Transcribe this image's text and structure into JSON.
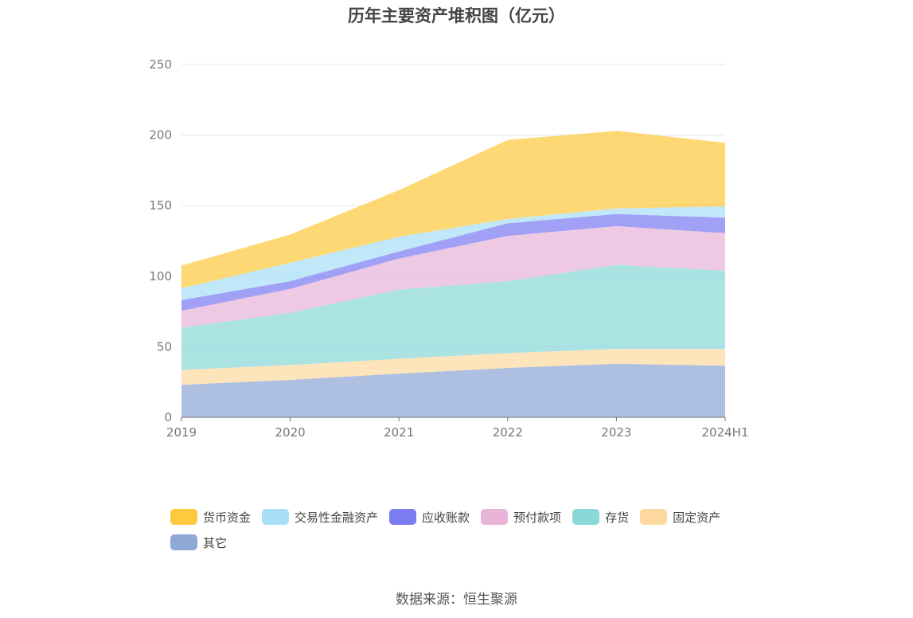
{
  "chart_data": {
    "type": "area",
    "stacked": true,
    "title": "历年主要资产堆积图（亿元）",
    "categories": [
      "2019",
      "2020",
      "2021",
      "2022",
      "2023",
      "2024H1"
    ],
    "ylim": [
      0,
      250
    ],
    "yticks": [
      0,
      50,
      100,
      150,
      200,
      250
    ],
    "grid": true,
    "legend_position": "bottom",
    "series": [
      {
        "name": "其它",
        "color": "#8fa8d6",
        "values": [
          23,
          26.5,
          31,
          35,
          38,
          36.5
        ]
      },
      {
        "name": "固定资产",
        "color": "#fdd9a0",
        "values": [
          10.5,
          10.5,
          10.5,
          10.5,
          10.5,
          12
        ]
      },
      {
        "name": "存货",
        "color": "#8ad8d8",
        "values": [
          30,
          37,
          49,
          51,
          59.5,
          55.5
        ]
      },
      {
        "name": "预付款项",
        "color": "#e8b4d8",
        "values": [
          12,
          17,
          22,
          32,
          27.5,
          26.5
        ]
      },
      {
        "name": "应收账款",
        "color": "#7b7cf2",
        "values": [
          7.5,
          5.5,
          5,
          9,
          8.5,
          11
        ]
      },
      {
        "name": "交易性金融资产",
        "color": "#a8dff5",
        "values": [
          8.5,
          13,
          10.5,
          3,
          4,
          8
        ]
      },
      {
        "name": "货币资金",
        "color": "#fdc93e",
        "values": [
          16,
          20,
          33,
          56,
          55,
          45
        ]
      }
    ]
  },
  "legend_order": [
    "货币资金",
    "交易性金融资产",
    "应收账款",
    "预付款项",
    "存货",
    "固定资产",
    "其它"
  ],
  "source": "数据来源：恒生聚源"
}
